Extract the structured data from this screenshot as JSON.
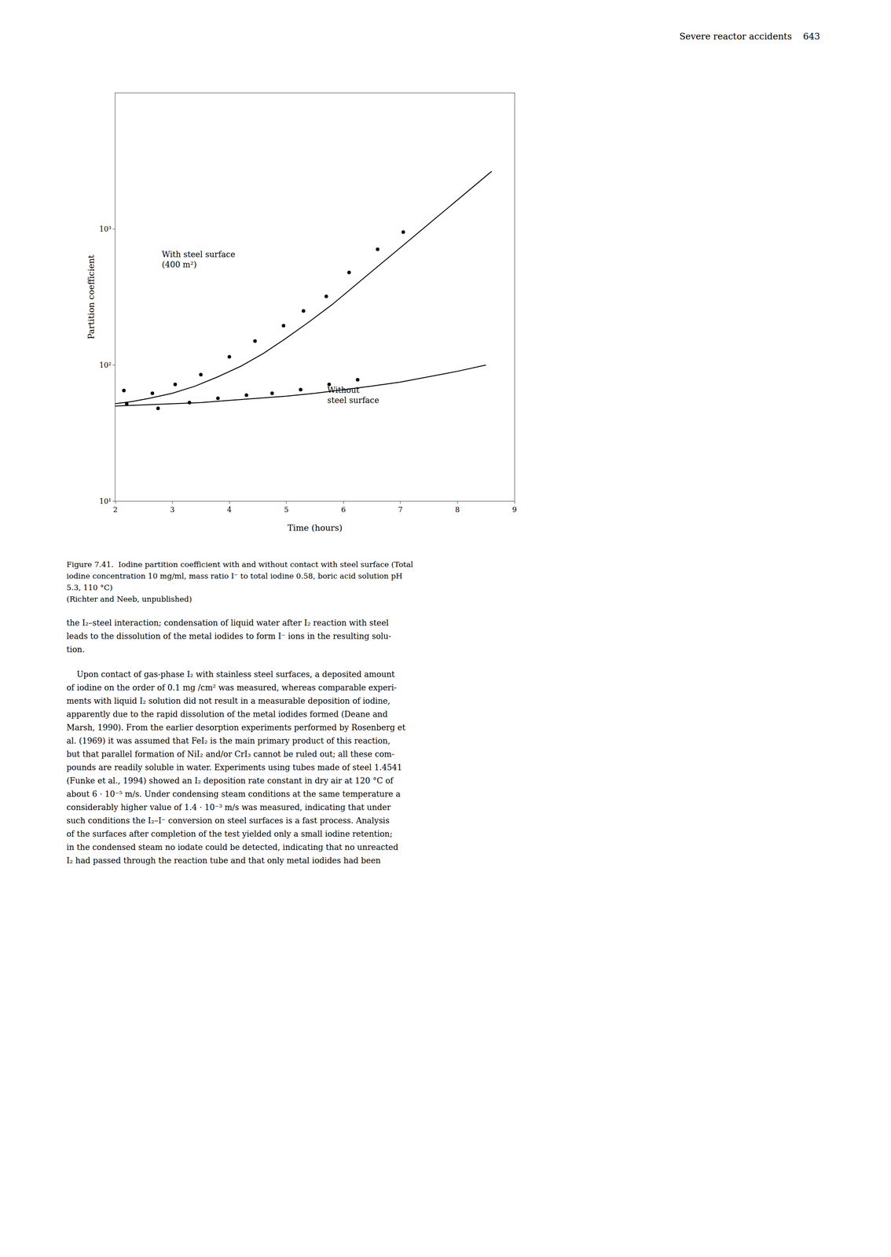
{
  "header": "Severe reactor accidents    643",
  "chart_data": {
    "type": "line",
    "x_label": "Time (hours)",
    "y_label": "Partition coefficient",
    "log": "y",
    "grid": false,
    "xlim": [
      2,
      9
    ],
    "xticks": [
      2,
      3,
      4,
      5,
      6,
      7,
      8,
      9
    ],
    "ylim": [
      10,
      10000
    ],
    "yticks": [
      {
        "value": 10,
        "label": "10¹"
      },
      {
        "value": 100,
        "label": "10²"
      },
      {
        "value": 1000,
        "label": "10³"
      }
    ],
    "series": [
      {
        "type": "line",
        "color": "#000000",
        "x": [
          2.0,
          2.3,
          2.6,
          3.0,
          3.4,
          3.8,
          4.2,
          4.6,
          5.0,
          5.4,
          5.8,
          6.2,
          6.6,
          7.0,
          7.4,
          7.8,
          8.2,
          8.6
        ],
        "values": [
          52,
          54,
          57,
          62,
          70,
          82,
          98,
          122,
          158,
          208,
          278,
          385,
          530,
          730,
          1010,
          1395,
          1925,
          2660
        ]
      },
      {
        "type": "line",
        "color": "#000000",
        "x": [
          2.0,
          2.5,
          3.0,
          3.5,
          4.0,
          4.5,
          5.0,
          5.5,
          6.0,
          6.5,
          7.0,
          7.5,
          8.0,
          8.5
        ],
        "values": [
          50,
          51,
          52,
          53,
          55,
          57,
          59,
          62,
          66,
          70,
          75,
          82,
          90,
          100
        ]
      },
      {
        "type": "scatter",
        "marker": "circle",
        "color": "#000000",
        "x": [
          2.15,
          2.65,
          3.05,
          3.5,
          4.0,
          4.45,
          4.95,
          5.3,
          5.7,
          6.1,
          6.6,
          7.05
        ],
        "values": [
          65,
          62,
          72,
          85,
          115,
          150,
          195,
          250,
          320,
          480,
          710,
          950
        ]
      },
      {
        "type": "scatter",
        "marker": "circle",
        "color": "#000000",
        "x": [
          2.2,
          2.75,
          3.3,
          3.8,
          4.3,
          4.75,
          5.25,
          5.75,
          6.25
        ],
        "values": [
          52,
          48,
          53,
          57,
          60,
          62,
          66,
          72,
          78
        ]
      }
    ],
    "annotations": [
      {
        "text": "With steel surface\n(400 m²)",
        "x": 2.8,
        "y": 600
      },
      {
        "text": "Without\nsteel surface",
        "x": 5.7,
        "y": 60
      }
    ]
  },
  "caption": [
    "Figure 7.41.  Iodine partition coefficient with and without contact with steel surface (Total",
    "iodine concentration 10 mg/ml, mass ratio I⁻ to total iodine 0.58, boric acid solution pH",
    "5.3, 110 °C)",
    "(Richter and Neeb, unpublished)"
  ],
  "body": [
    [
      "the I₂–steel interaction; condensation of liquid water after I₂ reaction with steel",
      "leads to the dissolution of the metal iodides to form I⁻ ions in the resulting solu-",
      "tion."
    ],
    [
      "    Upon contact of gas-phase I₂ with stainless steel surfaces, a deposited amount",
      "of iodine on the order of 0.1 mg /cm² was measured, whereas comparable experi-",
      "ments with liquid I₂ solution did not result in a measurable deposition of iodine,",
      "apparently due to the rapid dissolution of the metal iodides formed (Deane and",
      "Marsh, 1990). From the earlier desorption experiments performed by Rosenberg et",
      "al. (1969) it was assumed that FeI₂ is the main primary product of this reaction,",
      "but that parallel formation of NiI₂ and/or CrI₃ cannot be ruled out; all these com-",
      "pounds are readily soluble in water. Experiments using tubes made of steel 1.4541",
      "(Funke et al., 1994) showed an I₂ deposition rate constant in dry air at 120 °C of",
      "about 6 · 10⁻⁵ m/s. Under condensing steam conditions at the same temperature a",
      "considerably higher value of 1.4 · 10⁻³ m/s was measured, indicating that under",
      "such conditions the I₂–I⁻ conversion on steel surfaces is a fast process. Analysis",
      "of the surfaces after completion of the test yielded only a small iodine retention;",
      "in the condensed steam no iodate could be detected, indicating that no unreacted",
      "I₂ had passed through the reaction tube and that only metal iodides had been"
    ]
  ]
}
